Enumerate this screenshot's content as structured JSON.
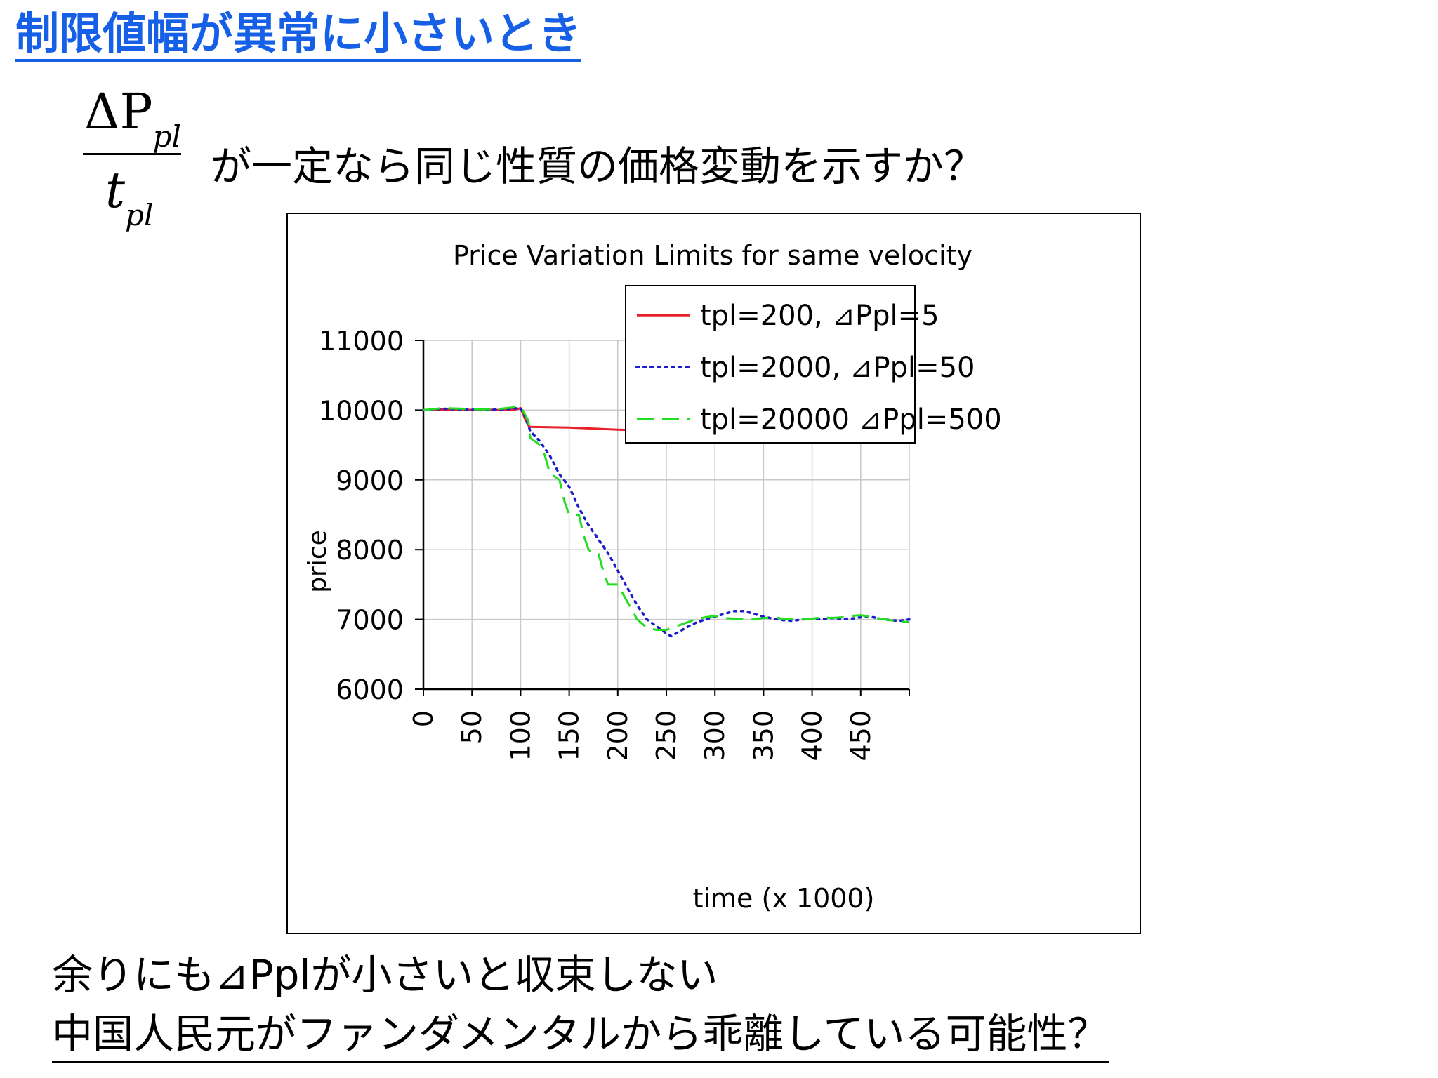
{
  "slide": {
    "title": "制限値幅が異常に小さいとき",
    "formula": {
      "numerator": "ΔP",
      "numerator_sub": "pl",
      "denominator": "t",
      "denominator_sub": "pl"
    },
    "question": "が一定なら同じ性質の価格変動を示すか？",
    "footer_line1": "余りにも⊿Pplが小さいと収束しない",
    "footer_line2": "中国人民元がファンダメンタルから乖離している可能性？"
  },
  "colors": {
    "title": "#1560e6",
    "series_red": "#e8202a",
    "series_blue": "#1c1ccc",
    "series_green": "#22dd22",
    "grid": "#c8c8c8"
  },
  "chart_data": {
    "type": "line",
    "title": "Price Variation Limits for same velocity",
    "xlabel": "time (x 1000)",
    "ylabel": "price",
    "xlim": [
      0,
      500
    ],
    "ylim": [
      6000,
      11000
    ],
    "xticks": [
      "0",
      "50",
      "100",
      "150",
      "200",
      "250",
      "300",
      "350",
      "400",
      "450"
    ],
    "xtick_values": [
      0,
      50,
      100,
      150,
      200,
      250,
      300,
      350,
      400,
      450
    ],
    "yticks": [
      "6000",
      "7000",
      "8000",
      "9000",
      "10000",
      "11000"
    ],
    "ytick_values": [
      6000,
      7000,
      8000,
      9000,
      10000,
      11000
    ],
    "grid": true,
    "legend_position": "top-right",
    "series": [
      {
        "name": "tpl=200, ⊿Ppl=5",
        "color": "#e8202a",
        "style": "solid",
        "x": [
          0,
          20,
          40,
          60,
          80,
          95,
          100,
          102,
          105,
          108,
          110,
          150,
          200,
          250,
          300,
          350,
          400,
          450,
          480,
          500
        ],
        "y": [
          10000,
          10010,
          10000,
          10010,
          10000,
          10010,
          10030,
          9960,
          9860,
          9780,
          9760,
          9750,
          9720,
          9700,
          9680,
          9660,
          9630,
          9610,
          9580,
          9560
        ]
      },
      {
        "name": "tpl=2000, ⊿Ppl=50",
        "color": "#1c1ccc",
        "style": "dotted",
        "x": [
          0,
          20,
          40,
          60,
          80,
          100,
          105,
          110,
          120,
          130,
          140,
          150,
          160,
          170,
          180,
          190,
          200,
          210,
          220,
          230,
          240,
          250,
          255,
          260,
          270,
          280,
          290,
          300,
          310,
          320,
          330,
          340,
          350,
          360,
          370,
          380,
          390,
          400,
          410,
          420,
          430,
          440,
          450,
          460,
          470,
          480,
          490,
          500
        ],
        "y": [
          10000,
          10020,
          10010,
          10000,
          10010,
          10030,
          9900,
          9700,
          9550,
          9350,
          9080,
          8900,
          8600,
          8350,
          8150,
          7950,
          7700,
          7450,
          7200,
          7000,
          6900,
          6800,
          6760,
          6800,
          6880,
          6950,
          7000,
          7040,
          7080,
          7120,
          7120,
          7080,
          7040,
          7010,
          6990,
          6980,
          7000,
          7010,
          7000,
          7020,
          7010,
          7010,
          7030,
          7040,
          7010,
          6990,
          6980,
          7000
        ]
      },
      {
        "name": "tpl=20000 ⊿Ppl=500",
        "color": "#22dd22",
        "style": "dashed",
        "x": [
          0,
          20,
          40,
          60,
          80,
          100,
          108,
          110,
          115,
          120,
          125,
          130,
          140,
          145,
          150,
          160,
          165,
          170,
          175,
          180,
          185,
          190,
          195,
          200,
          210,
          220,
          230,
          240,
          250,
          260,
          270,
          280,
          290,
          300,
          310,
          320,
          330,
          340,
          350,
          360,
          370,
          380,
          390,
          400,
          410,
          420,
          430,
          440,
          450,
          460,
          470,
          480,
          490,
          500
        ],
        "y": [
          10000,
          10030,
          10020,
          10010,
          10020,
          10050,
          9850,
          9600,
          9550,
          9500,
          9350,
          9100,
          9000,
          8700,
          8500,
          8500,
          8200,
          8000,
          7950,
          7950,
          7700,
          7500,
          7500,
          7500,
          7250,
          7000,
          6880,
          6850,
          6850,
          6900,
          6950,
          7000,
          7030,
          7050,
          7020,
          7010,
          7000,
          7000,
          7020,
          7030,
          7010,
          7000,
          7000,
          7010,
          7030,
          7020,
          7030,
          7050,
          7060,
          7040,
          7010,
          6990,
          6970,
          6960
        ]
      }
    ]
  }
}
